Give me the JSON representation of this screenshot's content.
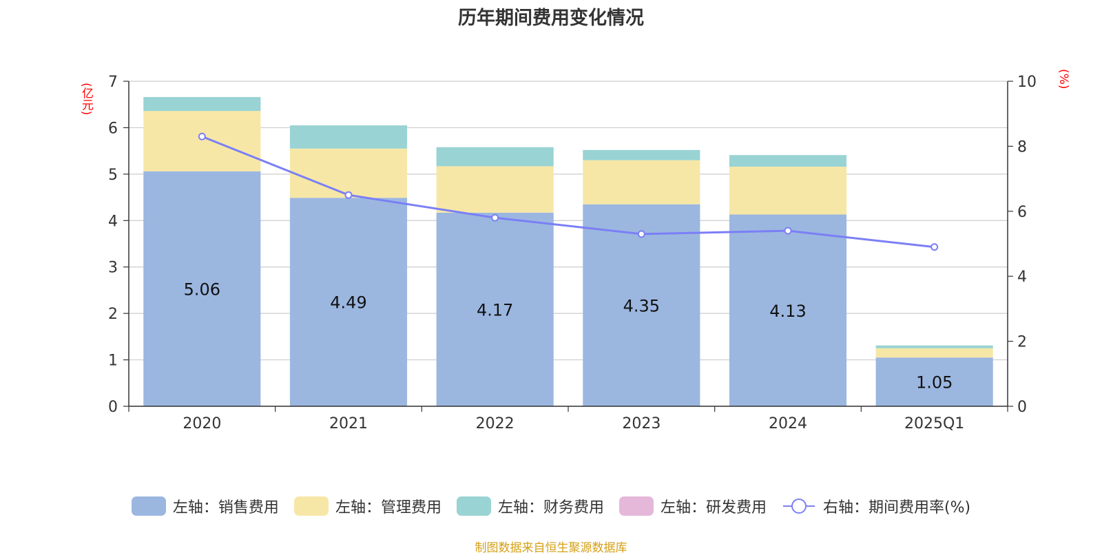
{
  "title": "历年期间费用变化情况",
  "source_note": "制图数据来自恒生聚源数据库",
  "colors": {
    "sales": "#9bb7e0",
    "admin": "#f7e7a7",
    "finance": "#99d3d3",
    "rnd": "#e5b8da",
    "rate": "#7b7ff5",
    "axis_unit": "#ff0000",
    "source": "#d4a017"
  },
  "chart_data": {
    "type": "bar",
    "stacked": true,
    "title": "历年期间费用变化情况",
    "categories": [
      "2020",
      "2021",
      "2022",
      "2023",
      "2024",
      "2025Q1"
    ],
    "y_left": {
      "unit": "(亿元)",
      "range": [
        0,
        7
      ],
      "ticks": [
        "0",
        "1",
        "2",
        "3",
        "4",
        "5",
        "6",
        "7"
      ]
    },
    "y_right": {
      "unit": "(%)",
      "range": [
        0,
        10
      ],
      "ticks": [
        "0",
        "2",
        "4",
        "6",
        "8",
        "10"
      ]
    },
    "grid": true,
    "legend_position": "bottom",
    "series": [
      {
        "name": "左轴：销售费用",
        "axis": "left",
        "color": "#9bb7e0",
        "values": [
          5.06,
          4.49,
          4.17,
          4.35,
          4.13,
          1.05
        ],
        "labels": [
          "5.06",
          "4.49",
          "4.17",
          "4.35",
          "4.13",
          "1.05"
        ]
      },
      {
        "name": "左轴：管理费用",
        "axis": "left",
        "color": "#f7e7a7",
        "values": [
          1.3,
          1.06,
          1.0,
          0.95,
          1.03,
          0.2
        ]
      },
      {
        "name": "左轴：财务费用",
        "axis": "left",
        "color": "#99d3d3",
        "values": [
          0.3,
          0.5,
          0.41,
          0.22,
          0.25,
          0.06
        ]
      },
      {
        "name": "左轴：研发费用",
        "axis": "left",
        "color": "#e5b8da",
        "values": [
          0,
          0,
          0,
          0,
          0,
          0
        ]
      },
      {
        "name": "右轴：期间费用率(%)",
        "axis": "right",
        "type": "line",
        "color": "#7b7ff5",
        "values": [
          8.3,
          6.5,
          5.8,
          5.3,
          5.4,
          4.9
        ]
      }
    ]
  }
}
